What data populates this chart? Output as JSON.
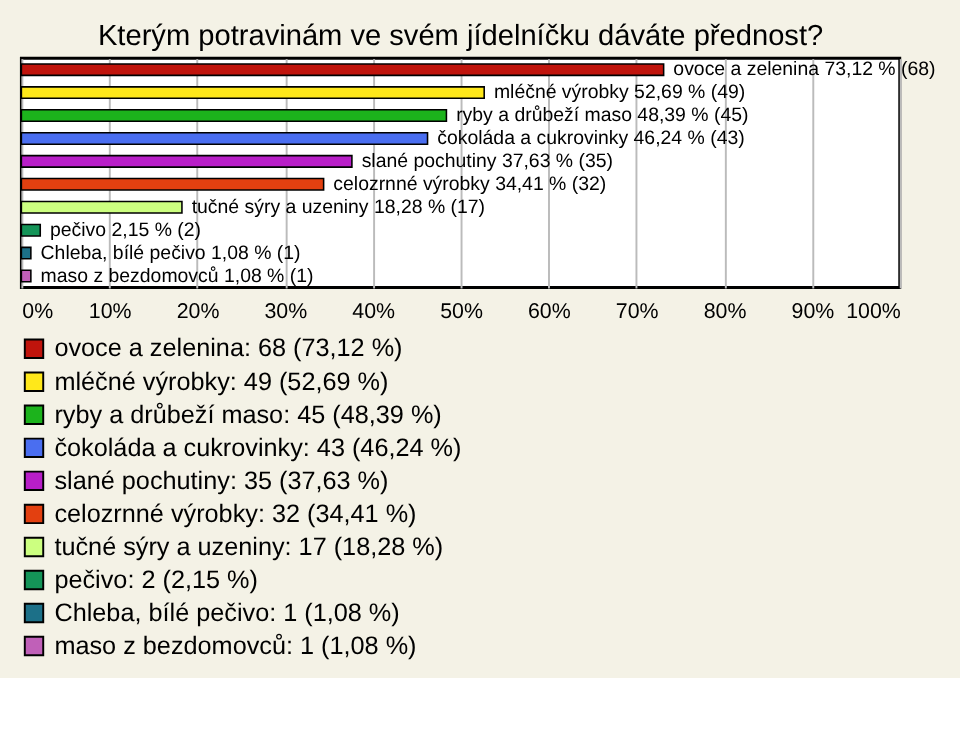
{
  "chart_data": {
    "type": "bar",
    "orientation": "horizontal",
    "title": "Kterým potravinám ve svém jídelníčku dáváte přednost?",
    "categories": [
      null,
      null,
      null,
      null,
      null,
      null,
      null,
      null,
      null,
      null
    ],
    "series": [
      {
        "name": "ovoce a zelenina: 68 (73,12 %)",
        "color": "#c0140c",
        "values": [
          73.12,
          null,
          null,
          null,
          null,
          null,
          null,
          null,
          null,
          null
        ],
        "value_labels": [
          "ovoce a zelenina 73,12 % (68)",
          null,
          null,
          null,
          null,
          null,
          null,
          null,
          null,
          null
        ]
      },
      {
        "name": "mléčné výrobky: 49 (52,69 %)",
        "color": "#ffe81a",
        "values": [
          null,
          52.69,
          null,
          null,
          null,
          null,
          null,
          null,
          null,
          null
        ],
        "value_labels": [
          null,
          "mléčné výrobky 52,69 % (49)",
          null,
          null,
          null,
          null,
          null,
          null,
          null,
          null
        ]
      },
      {
        "name": "ryby a drůbeží maso: 45 (48,39 %)",
        "color": "#1cb31c",
        "values": [
          null,
          null,
          48.39,
          null,
          null,
          null,
          null,
          null,
          null,
          null
        ],
        "value_labels": [
          null,
          null,
          "ryby a drůbeží maso 48,39 % (45)",
          null,
          null,
          null,
          null,
          null,
          null,
          null
        ]
      },
      {
        "name": "čokoláda a cukrovinky: 43 (46,24 %)",
        "color": "#4a6ef0",
        "values": [
          null,
          null,
          null,
          46.24,
          null,
          null,
          null,
          null,
          null,
          null
        ],
        "value_labels": [
          null,
          null,
          null,
          "čokoláda a cukrovinky 46,24 % (43)",
          null,
          null,
          null,
          null,
          null,
          null
        ]
      },
      {
        "name": "slané pochutiny: 35 (37,63 %)",
        "color": "#b81ec8",
        "values": [
          null,
          null,
          null,
          null,
          37.63,
          null,
          null,
          null,
          null,
          null
        ],
        "value_labels": [
          null,
          null,
          null,
          null,
          "slané pochutiny 37,63 % (35)",
          null,
          null,
          null,
          null,
          null
        ]
      },
      {
        "name": "celozrnné výrobky: 32 (34,41 %)",
        "color": "#e34010",
        "values": [
          null,
          null,
          null,
          null,
          null,
          34.41,
          null,
          null,
          null,
          null
        ],
        "value_labels": [
          null,
          null,
          null,
          null,
          null,
          "celozrnné výrobky 34,41 % (32)",
          null,
          null,
          null,
          null
        ]
      },
      {
        "name": "tučné sýry a uzeniny: 17 (18,28 %)",
        "color": "#ccff80",
        "values": [
          null,
          null,
          null,
          null,
          null,
          null,
          18.28,
          null,
          null,
          null
        ],
        "value_labels": [
          null,
          null,
          null,
          null,
          null,
          null,
          "tučné sýry a uzeniny 18,28 % (17)",
          null,
          null,
          null
        ]
      },
      {
        "name": "pečivo: 2 (2,15 %)",
        "color": "#149458",
        "values": [
          null,
          null,
          null,
          null,
          null,
          null,
          null,
          2.15,
          null,
          null
        ],
        "value_labels": [
          null,
          null,
          null,
          null,
          null,
          null,
          null,
          "pečivo 2,15 % (2)",
          null,
          null
        ]
      },
      {
        "name": "Chleba, bílé pečivo: 1 (1,08 %)",
        "color": "#1c7088",
        "values": [
          null,
          null,
          null,
          null,
          null,
          null,
          null,
          null,
          1.08,
          null
        ],
        "value_labels": [
          null,
          null,
          null,
          null,
          null,
          null,
          null,
          null,
          "Chleba, bílé pečivo 1,08 % (1)",
          null
        ]
      },
      {
        "name": "maso z bezdomovců: 1 (1,08 %)",
        "color": "#c060b8",
        "values": [
          null,
          null,
          null,
          null,
          null,
          null,
          null,
          null,
          null,
          1.08
        ],
        "value_labels": [
          null,
          null,
          null,
          null,
          null,
          null,
          null,
          null,
          null,
          "maso z bezdomovců 1,08 % (1)"
        ]
      }
    ],
    "xlim": [
      0,
      100
    ],
    "xticks": [
      {
        "value": 0,
        "label": "0%"
      },
      {
        "value": 10,
        "label": "10%"
      },
      {
        "value": 20,
        "label": "20%"
      },
      {
        "value": 30,
        "label": "30%"
      },
      {
        "value": 40,
        "label": "40%"
      },
      {
        "value": 50,
        "label": "50%"
      },
      {
        "value": 60,
        "label": "60%"
      },
      {
        "value": 70,
        "label": "70%"
      },
      {
        "value": 80,
        "label": "80%"
      },
      {
        "value": 90,
        "label": "90%"
      },
      {
        "value": 100,
        "label": "100%"
      }
    ],
    "tick_labels": "x",
    "grid": "x",
    "legend": "bottom"
  }
}
